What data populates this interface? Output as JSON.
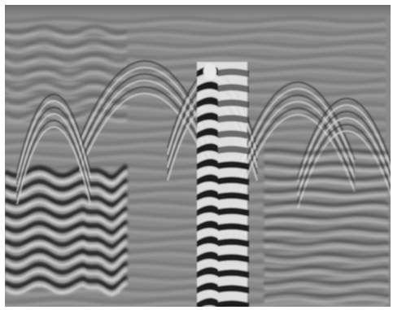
{
  "image": {
    "subject": "ground-penetrating-radar-profile",
    "palette": {
      "background": "#8a8a8a",
      "dark_band": "#1a1a1a",
      "light_band": "#e8e8e8",
      "border": "#ffffff"
    }
  }
}
